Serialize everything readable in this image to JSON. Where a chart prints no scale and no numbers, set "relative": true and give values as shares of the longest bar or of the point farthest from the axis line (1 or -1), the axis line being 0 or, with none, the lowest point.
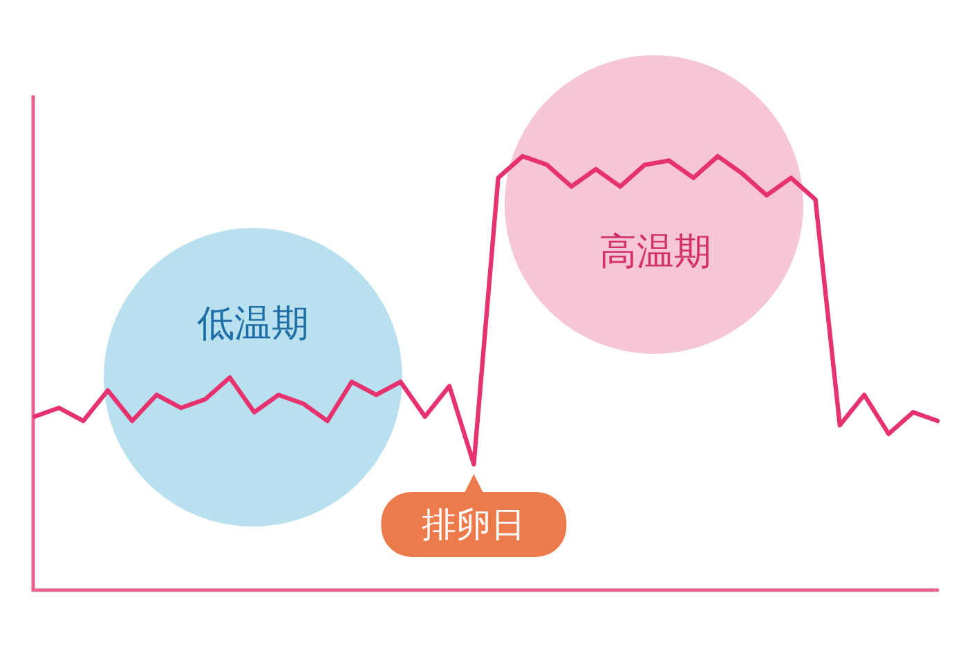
{
  "chart_data": {
    "type": "line",
    "relative": true,
    "categories": [
      null,
      null,
      null,
      null,
      null,
      null,
      null,
      null,
      null,
      null,
      null,
      null,
      null,
      null,
      null,
      null,
      null,
      null,
      null,
      null,
      null,
      null,
      null,
      null,
      null,
      null,
      null,
      null,
      null,
      null,
      null,
      null,
      null,
      null,
      null,
      null,
      null,
      null
    ],
    "series": [
      {
        "color": "#e6336f",
        "values": [
          0.4,
          0.42,
          0.39,
          0.46,
          0.39,
          0.45,
          0.42,
          0.44,
          0.49,
          0.41,
          0.45,
          0.43,
          0.39,
          0.48,
          0.45,
          0.48,
          0.4,
          0.47,
          0.29,
          0.95,
          1.0,
          0.98,
          0.93,
          0.97,
          0.93,
          0.98,
          0.99,
          0.95,
          1.0,
          0.96,
          0.91,
          0.95,
          0.9,
          0.38,
          0.45,
          0.36,
          0.41,
          0.39
        ]
      }
    ],
    "annotations": [
      "低温期",
      "高温期",
      "排卵日"
    ]
  }
}
